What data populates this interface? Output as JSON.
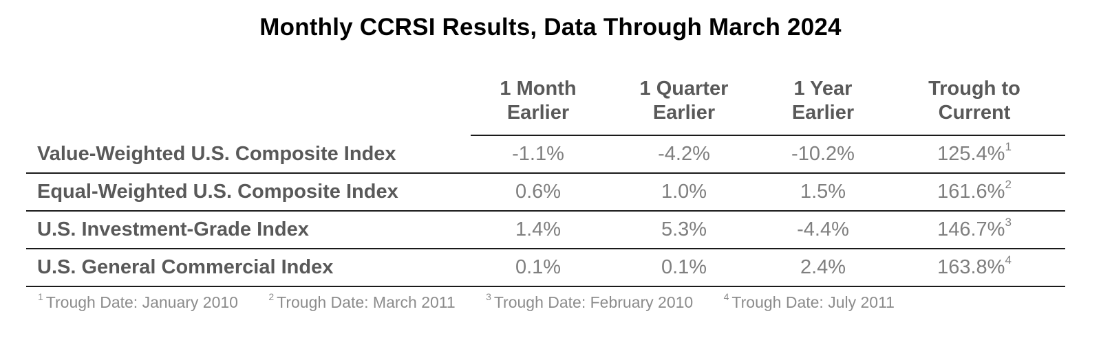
{
  "title": "Monthly CCRSI Results, Data Through March 2024",
  "columns": [
    {
      "line1": "1 Month",
      "line2": "Earlier"
    },
    {
      "line1": "1 Quarter",
      "line2": "Earlier"
    },
    {
      "line1": "1 Year",
      "line2": "Earlier"
    },
    {
      "line1": "Trough to",
      "line2": "Current"
    }
  ],
  "rows": [
    {
      "label": "Value-Weighted U.S. Composite Index",
      "month": "-1.1%",
      "quarter": "-4.2%",
      "year": "-10.2%",
      "trough": "125.4%",
      "note": "1"
    },
    {
      "label": "Equal-Weighted U.S. Composite Index",
      "month": "0.6%",
      "quarter": "1.0%",
      "year": "1.5%",
      "trough": "161.6%",
      "note": "2"
    },
    {
      "label": "U.S. Investment-Grade Index",
      "month": "1.4%",
      "quarter": "5.3%",
      "year": "-4.4%",
      "trough": "146.7%",
      "note": "3"
    },
    {
      "label": "U.S. General Commercial Index",
      "month": "0.1%",
      "quarter": "0.1%",
      "year": "2.4%",
      "trough": "163.8%",
      "note": "4"
    }
  ],
  "footnotes": [
    {
      "num": "1",
      "text": "Trough Date: January 2010"
    },
    {
      "num": "2",
      "text": "Trough Date: March 2011"
    },
    {
      "num": "3",
      "text": "Trough Date: February 2010"
    },
    {
      "num": "4",
      "text": "Trough Date: July 2011"
    }
  ],
  "chart_data": {
    "type": "table",
    "title": "Monthly CCRSI Results, Data Through March 2024",
    "columns": [
      "1 Month Earlier",
      "1 Quarter Earlier",
      "1 Year Earlier",
      "Trough to Current"
    ],
    "rows": [
      {
        "name": "Value-Weighted U.S. Composite Index",
        "values": [
          -1.1,
          -4.2,
          -10.2,
          125.4
        ]
      },
      {
        "name": "Equal-Weighted U.S. Composite Index",
        "values": [
          0.6,
          1.0,
          1.5,
          161.6
        ]
      },
      {
        "name": "U.S. Investment-Grade Index",
        "values": [
          1.4,
          5.3,
          -4.4,
          146.7
        ]
      },
      {
        "name": "U.S. General Commercial Index",
        "values": [
          0.1,
          0.1,
          2.4,
          163.8
        ]
      }
    ],
    "unit": "%"
  }
}
